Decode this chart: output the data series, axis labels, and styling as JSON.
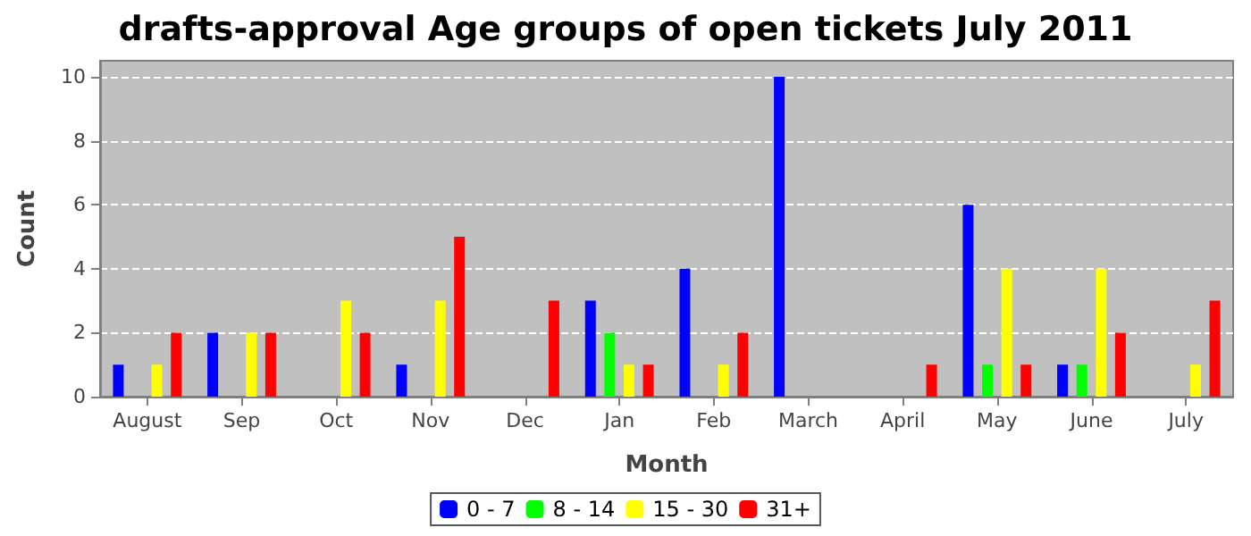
{
  "chart_data": {
    "type": "bar",
    "title": "drafts-approval Age groups of open tickets July 2011",
    "xlabel": "Month",
    "ylabel": "Count",
    "categories": [
      "August",
      "Sep",
      "Oct",
      "Nov",
      "Dec",
      "Jan",
      "Feb",
      "March",
      "April",
      "May",
      "June",
      "July"
    ],
    "series": [
      {
        "name": "0 - 7",
        "color": "#0000ff",
        "values": [
          1,
          2,
          0,
          1,
          0,
          3,
          4,
          10,
          0,
          6,
          1,
          0
        ]
      },
      {
        "name": "8 - 14",
        "color": "#00ff00",
        "values": [
          0,
          0,
          0,
          0,
          0,
          2,
          0,
          0,
          0,
          1,
          1,
          0
        ]
      },
      {
        "name": "15 - 30",
        "color": "#ffff00",
        "values": [
          1,
          2,
          3,
          3,
          0,
          1,
          1,
          0,
          0,
          4,
          4,
          1
        ]
      },
      {
        "name": "31+",
        "color": "#ff0000",
        "values": [
          2,
          2,
          2,
          5,
          3,
          1,
          2,
          0,
          1,
          1,
          2,
          3
        ]
      }
    ],
    "ylim": [
      0,
      10.5
    ],
    "yticks": [
      0,
      2,
      4,
      6,
      8,
      10
    ],
    "grid": "y",
    "legend": "bottom"
  }
}
